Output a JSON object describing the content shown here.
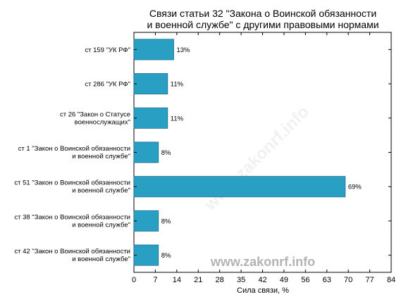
{
  "chart_data": {
    "type": "bar",
    "orientation": "horizontal",
    "title_lines": [
      "Связи статьи 32 \"Закона о Воинской обязанности",
      "и военной службе\" с другими правовыми нормами"
    ],
    "categories": [
      [
        "ст 159 \"УК РФ\""
      ],
      [
        "ст 286 \"УК РФ\""
      ],
      [
        "ст 26 \"Закон о Статусе",
        "военнослужащих\""
      ],
      [
        "ст 1 \"Закон о Воинской обязанности",
        "и военной службе\""
      ],
      [
        "ст 51 \"Закон о Воинской обязанности",
        "и военной службе\""
      ],
      [
        "ст 38 \"Закон о Воинской обязанности",
        "и военной службе\""
      ],
      [
        "ст 42 \"Закон о Воинской обязанности",
        "и военной службе\""
      ]
    ],
    "values": [
      13,
      11,
      11,
      8,
      69,
      8,
      8
    ],
    "value_labels": [
      "13%",
      "11%",
      "11%",
      "8%",
      "69%",
      "8%",
      "8%"
    ],
    "xlabel": "Сила связи, %",
    "xlim": [
      0,
      84
    ],
    "xticks": [
      0,
      7,
      14,
      21,
      28,
      35,
      42,
      49,
      56,
      63,
      70,
      77,
      84
    ],
    "grid": false,
    "bar_color": "#2a9fc4",
    "bar_edge_color": "#1f6f8a",
    "watermark": "www.zakonrf.info"
  }
}
